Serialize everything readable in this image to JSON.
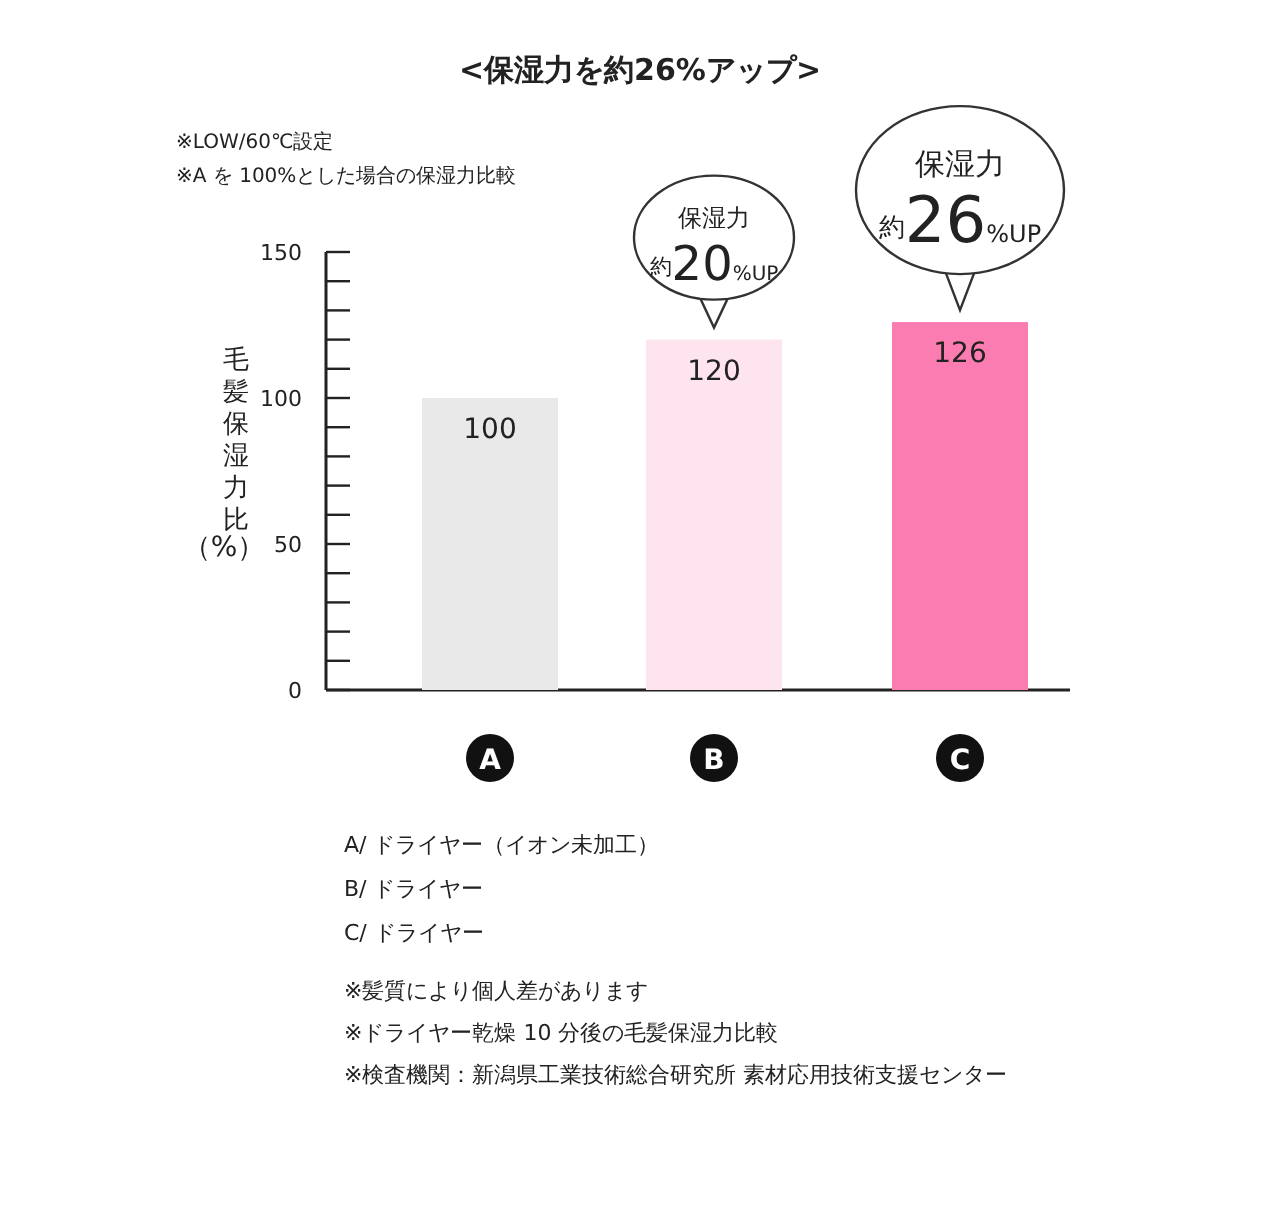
{
  "chart_data": {
    "type": "bar",
    "title": "<保湿力を約26%アップ>",
    "ylabel": "毛髪保湿力比（%）",
    "categories": [
      "A",
      "B",
      "C"
    ],
    "values": [
      100,
      120,
      126
    ],
    "colors": [
      "#e9e9e9",
      "#fde4ee",
      "#fb7cb0"
    ],
    "data_labels": true,
    "grid": false,
    "ylim": [
      0,
      150
    ],
    "yticks": [
      0,
      {
        "value": 10,
        "label": null
      },
      {
        "value": 20,
        "label": null
      },
      {
        "value": 30,
        "label": null
      },
      {
        "value": 40,
        "label": null
      },
      50,
      {
        "value": 60,
        "label": null
      },
      {
        "value": 70,
        "label": null
      },
      {
        "value": 80,
        "label": null
      },
      {
        "value": 90,
        "label": null
      },
      100,
      {
        "value": 110,
        "label": null
      },
      {
        "value": 120,
        "label": null
      },
      {
        "value": 130,
        "label": null
      },
      {
        "value": 140,
        "label": null
      },
      150
    ],
    "annotations": [
      "※LOW/60℃設定",
      "※A を 100%とした場合の保湿力比較",
      {
        "text": "保湿力$_{約}$20%UP",
        "x": "B",
        "y": 120
      },
      {
        "text": "保湿力$_{約}$26%UP",
        "x": "C",
        "y": 126
      },
      "A/ ドライヤー（イオン未加工）",
      "B/ ドライヤー",
      "C/ ドライヤー",
      "※髪質により個人差があります",
      "※ドライヤー乾燥 10 分後の毛髪保湿力比較",
      "※検査機関：新潟県工業技術総合研究所 素材応用技術支援センター"
    ]
  }
}
